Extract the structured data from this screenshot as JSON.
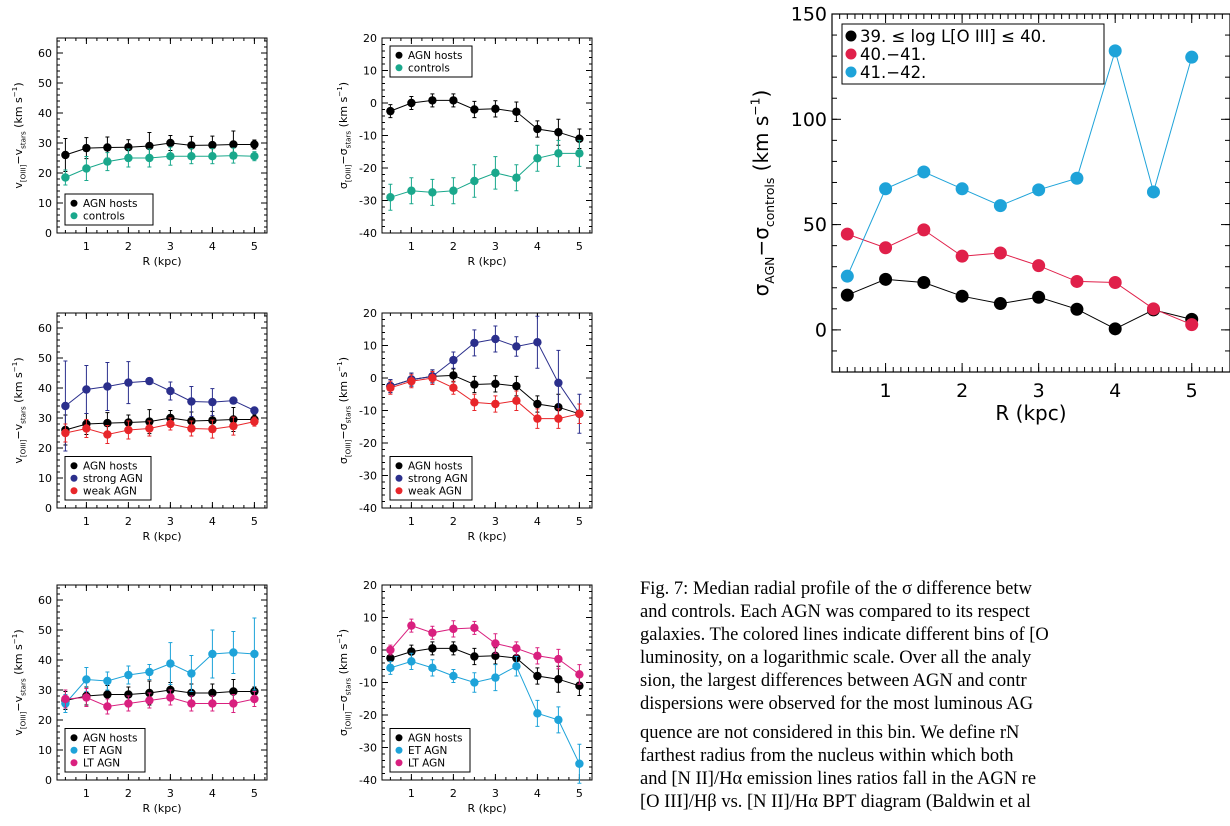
{
  "chart_data": [
    {
      "id": "p1",
      "type": "line",
      "xlabel": "R (kpc)",
      "ylabel": "v[OIII]−vstars (km s−1)",
      "xlim": [
        0.3,
        5.3
      ],
      "ylim": [
        0,
        65
      ],
      "xticks": [
        1,
        2,
        3,
        4,
        5
      ],
      "yticks": [
        0,
        10,
        20,
        30,
        40,
        50,
        60
      ],
      "legend_position": "bottom-left",
      "series": [
        {
          "name": "AGN hosts",
          "color": "#000000",
          "x": [
            0.5,
            1,
            1.5,
            2,
            2.5,
            3,
            3.5,
            4,
            4.5,
            5
          ],
          "y": [
            26,
            28.3,
            28.5,
            28.6,
            29,
            30,
            29.2,
            29.3,
            29.5,
            29.5
          ],
          "err": [
            5.5,
            3.5,
            3.5,
            2.5,
            4.5,
            2.5,
            3,
            3,
            4.5,
            1.5
          ]
        },
        {
          "name": "controls",
          "color": "#1aa88c",
          "x": [
            0.5,
            1,
            1.5,
            2,
            2.5,
            3,
            3.5,
            4,
            4.5,
            5
          ],
          "y": [
            18.5,
            21.5,
            23.8,
            25,
            25,
            25.6,
            25.6,
            25.6,
            25.8,
            25.6
          ],
          "err": [
            2.5,
            4,
            3,
            3,
            3,
            3,
            2.5,
            2.5,
            2.5,
            1.5
          ]
        }
      ]
    },
    {
      "id": "p2",
      "type": "line",
      "xlabel": "R (kpc)",
      "ylabel": "σ[OIII]−σstars (km s−1)",
      "xlim": [
        0.3,
        5.3
      ],
      "ylim": [
        -40,
        20
      ],
      "xticks": [
        1,
        2,
        3,
        4,
        5
      ],
      "yticks": [
        -40,
        -30,
        -20,
        -10,
        0,
        10,
        20
      ],
      "legend_position": "top-left",
      "series": [
        {
          "name": "AGN hosts",
          "color": "#000000",
          "x": [
            0.5,
            1,
            1.5,
            2,
            2.5,
            3,
            3.5,
            4,
            4.5,
            5
          ],
          "y": [
            -2.5,
            0,
            0.8,
            0.8,
            -2,
            -1.8,
            -2.7,
            -8,
            -9,
            -11
          ],
          "err": [
            2,
            2,
            2,
            2,
            2.5,
            2.5,
            3,
            2.5,
            4,
            3
          ]
        },
        {
          "name": "controls",
          "color": "#1aa88c",
          "x": [
            0.5,
            1,
            1.5,
            2,
            2.5,
            3,
            3.5,
            4,
            4.5,
            5
          ],
          "y": [
            -29,
            -27,
            -27.5,
            -27,
            -24,
            -21.5,
            -23,
            -17,
            -15.5,
            -15.5
          ],
          "err": [
            4,
            4,
            4,
            4,
            5,
            5,
            4,
            4,
            4,
            4
          ]
        }
      ]
    },
    {
      "id": "p3",
      "type": "line",
      "xlabel": "R (kpc)",
      "ylabel": "v[OIII]−vstars (km s−1)",
      "xlim": [
        0.3,
        5.3
      ],
      "ylim": [
        0,
        65
      ],
      "xticks": [
        1,
        2,
        3,
        4,
        5
      ],
      "yticks": [
        0,
        10,
        20,
        30,
        40,
        50,
        60
      ],
      "legend_position": "bottom-left",
      "series": [
        {
          "name": "AGN hosts",
          "color": "#000000",
          "x": [
            0.5,
            1,
            1.5,
            2,
            2.5,
            3,
            3.5,
            4,
            4.5,
            5
          ],
          "y": [
            26,
            28,
            28.3,
            28.5,
            28.8,
            30,
            29,
            29.2,
            29.5,
            29.5
          ],
          "err": [
            5,
            3.5,
            3.5,
            2.5,
            4,
            2.5,
            3,
            3,
            4,
            1.5
          ]
        },
        {
          "name": "strong AGN",
          "color": "#2b2f8c",
          "x": [
            0.5,
            1,
            1.5,
            2,
            2.5,
            3,
            3.5,
            4,
            4.5,
            5
          ],
          "y": [
            34,
            39.5,
            40.5,
            41.8,
            42.3,
            39,
            35.5,
            35.3,
            35.8,
            32.5
          ],
          "err": [
            15,
            8,
            8,
            7,
            1,
            3,
            5,
            4.5,
            1,
            1
          ]
        },
        {
          "name": "weak AGN",
          "color": "#e8262a",
          "x": [
            0.5,
            1,
            1.5,
            2,
            2.5,
            3,
            3.5,
            4,
            4.5,
            5
          ],
          "y": [
            25,
            26.5,
            24.5,
            26,
            26.5,
            28,
            26.5,
            26.3,
            27.3,
            28.8
          ],
          "err": [
            3,
            3,
            3,
            3,
            2.5,
            2,
            2.5,
            3,
            3,
            1.5
          ]
        }
      ]
    },
    {
      "id": "p4",
      "type": "line",
      "xlabel": "R (kpc)",
      "ylabel": "σ[OIII]−σstars (km s−1)",
      "xlim": [
        0.3,
        5.3
      ],
      "ylim": [
        -40,
        20
      ],
      "xticks": [
        1,
        2,
        3,
        4,
        5
      ],
      "yticks": [
        -40,
        -30,
        -20,
        -10,
        0,
        10,
        20
      ],
      "legend_position": "bottom-left",
      "series": [
        {
          "name": "AGN hosts",
          "color": "#000000",
          "x": [
            0.5,
            1,
            1.5,
            2,
            2.5,
            3,
            3.5,
            4,
            4.5,
            5
          ],
          "y": [
            -2.5,
            -0.5,
            0.5,
            0.8,
            -2,
            -1.8,
            -2.5,
            -8,
            -9,
            -11
          ],
          "err": [
            2,
            2,
            2,
            2,
            2.5,
            2.5,
            3,
            2.5,
            4,
            3
          ]
        },
        {
          "name": "strong AGN",
          "color": "#2b2f8c",
          "x": [
            0.5,
            1,
            1.5,
            2,
            2.5,
            3,
            3.5,
            4,
            4.5,
            5
          ],
          "y": [
            -2.5,
            -0.5,
            0.5,
            5.5,
            10.8,
            12,
            9.7,
            11,
            -1.5,
            -11
          ],
          "err": [
            2,
            2,
            2,
            2.5,
            4,
            4,
            3,
            8,
            10,
            6
          ]
        },
        {
          "name": "weak AGN",
          "color": "#e8262a",
          "x": [
            0.5,
            1,
            1.5,
            2,
            2.5,
            3,
            3.5,
            4,
            4.5,
            5
          ],
          "y": [
            -3,
            -1,
            0,
            -3,
            -7.5,
            -8,
            -7,
            -12.5,
            -12.5,
            -11
          ],
          "err": [
            2,
            2,
            2,
            2,
            2.5,
            2.5,
            3,
            3,
            3,
            3
          ]
        }
      ]
    },
    {
      "id": "p5",
      "type": "line",
      "xlabel": "R (kpc)",
      "ylabel": "v[OIII]−vstars (km s−1)",
      "xlim": [
        0.3,
        5.3
      ],
      "ylim": [
        0,
        65
      ],
      "xticks": [
        1,
        2,
        3,
        4,
        5
      ],
      "yticks": [
        0,
        10,
        20,
        30,
        40,
        50,
        60
      ],
      "legend_position": "bottom-left",
      "series": [
        {
          "name": "AGN hosts",
          "color": "#000000",
          "x": [
            0.5,
            1,
            1.5,
            2,
            2.5,
            3,
            3.5,
            4,
            4.5,
            5
          ],
          "y": [
            26.5,
            28,
            28.5,
            28.5,
            29,
            30,
            29,
            29,
            29.5,
            29.5
          ],
          "err": [
            3,
            3,
            3,
            2.5,
            4,
            2.5,
            3,
            3,
            4,
            1.5
          ]
        },
        {
          "name": "ET AGN",
          "color": "#1ea3d9",
          "x": [
            0.5,
            1,
            1.5,
            2,
            2.5,
            3,
            3.5,
            4,
            4.5,
            5
          ],
          "y": [
            25.5,
            33.5,
            33,
            35,
            36,
            38.8,
            35.5,
            42,
            42.5,
            42
          ],
          "err": [
            3,
            4,
            3,
            3,
            2.5,
            7,
            6,
            8,
            7,
            12
          ]
        },
        {
          "name": "LT AGN",
          "color": "#d9207f",
          "x": [
            0.5,
            1,
            1.5,
            2,
            2.5,
            3,
            3.5,
            4,
            4.5,
            5
          ],
          "y": [
            27,
            27.5,
            24.5,
            25.5,
            26.5,
            27.5,
            25.5,
            25.5,
            25.5,
            27
          ],
          "err": [
            3,
            3,
            2.5,
            2.5,
            2.5,
            2.5,
            2.5,
            2.5,
            3,
            2.5
          ]
        }
      ]
    },
    {
      "id": "p6",
      "type": "line",
      "xlabel": "R (kpc)",
      "ylabel": "σ[OIII]−σstars (km s−1)",
      "xlim": [
        0.3,
        5.3
      ],
      "ylim": [
        -40,
        20
      ],
      "xticks": [
        1,
        2,
        3,
        4,
        5
      ],
      "yticks": [
        -40,
        -30,
        -20,
        -10,
        0,
        10,
        20
      ],
      "legend_position": "bottom-left",
      "series": [
        {
          "name": "AGN hosts",
          "color": "#000000",
          "x": [
            0.5,
            1,
            1.5,
            2,
            2.5,
            3,
            3.5,
            4,
            4.5,
            5
          ],
          "y": [
            -2.5,
            -0.5,
            0.5,
            0.5,
            -2,
            -1.8,
            -2.5,
            -8,
            -9,
            -11
          ],
          "err": [
            2,
            2,
            2,
            2,
            2.5,
            2.5,
            3,
            2.5,
            4,
            3
          ]
        },
        {
          "name": "ET AGN",
          "color": "#1ea3d9",
          "x": [
            0.5,
            1,
            1.5,
            2,
            2.5,
            3,
            3.5,
            4,
            4.5,
            5
          ],
          "y": [
            -5.5,
            -3.5,
            -5.5,
            -8,
            -10,
            -8.5,
            -5,
            -19.5,
            -21.5,
            -35
          ],
          "err": [
            2,
            2.5,
            2.5,
            2,
            3,
            4,
            3,
            4,
            4,
            6
          ]
        },
        {
          "name": "LT AGN",
          "color": "#d9207f",
          "x": [
            0.5,
            1,
            1.5,
            2,
            2.5,
            3,
            3.5,
            4,
            4.5,
            5
          ],
          "y": [
            0,
            7.5,
            5.3,
            6.5,
            6.8,
            2,
            0.5,
            -1.8,
            -2.8,
            -7.5
          ],
          "err": [
            1.5,
            2,
            2,
            2.5,
            2,
            3,
            2,
            2.5,
            3,
            3
          ]
        }
      ]
    },
    {
      "id": "p7",
      "type": "line",
      "xlabel": "R (kpc)",
      "ylabel": "σAGN−σcontrols (km s−1)",
      "xlim": [
        0.3,
        5.5
      ],
      "ylim": [
        -20,
        150
      ],
      "xticks": [
        1,
        2,
        3,
        4,
        5
      ],
      "yticks": [
        0,
        50,
        100,
        150
      ],
      "legend_position": "top-left",
      "series": [
        {
          "name": "39. ≤ log L[O III]  ≤ 40.",
          "color": "#000000",
          "x": [
            0.5,
            1,
            1.5,
            2,
            2.5,
            3,
            3.5,
            4,
            4.5,
            5
          ],
          "y": [
            16.5,
            24,
            22.5,
            16,
            12.5,
            15.5,
            9.8,
            0.5,
            9.5,
            5
          ]
        },
        {
          "name": "40.−41.",
          "color": "#e0204a",
          "x": [
            0.5,
            1,
            1.5,
            2,
            2.5,
            3,
            3.5,
            4,
            4.5,
            5
          ],
          "y": [
            45.5,
            39,
            47.5,
            35,
            36.5,
            30.5,
            23,
            22.5,
            10,
            2.5
          ]
        },
        {
          "name": "41.−42.",
          "color": "#1ea3d9",
          "x": [
            0.5,
            1,
            1.5,
            2,
            2.5,
            3,
            3.5,
            4,
            4.5,
            5
          ],
          "y": [
            25.5,
            67,
            75,
            67,
            59,
            66.5,
            72,
            132.5,
            65.5,
            129.5
          ]
        }
      ]
    }
  ],
  "caption_lines": [
    "Fig. 7: Median radial profile of the σ difference betw",
    "and controls. Each AGN was compared to its respect",
    "galaxies. The colored lines indicate different bins of [O",
    "luminosity, on a logarithmic scale. Over all the analy",
    "sion, the largest differences between AGN and contr",
    "dispersions were observed for the most luminous AG"
  ],
  "body_lines": [
    "quence are not considered in this bin. We define rN",
    "farthest radius from the nucleus within which both",
    "and [N II]/Hα emission lines ratios fall in the AGN re",
    "[O III]/Hβ vs. [N II]/Hα BPT diagram (Baldwin et al"
  ]
}
